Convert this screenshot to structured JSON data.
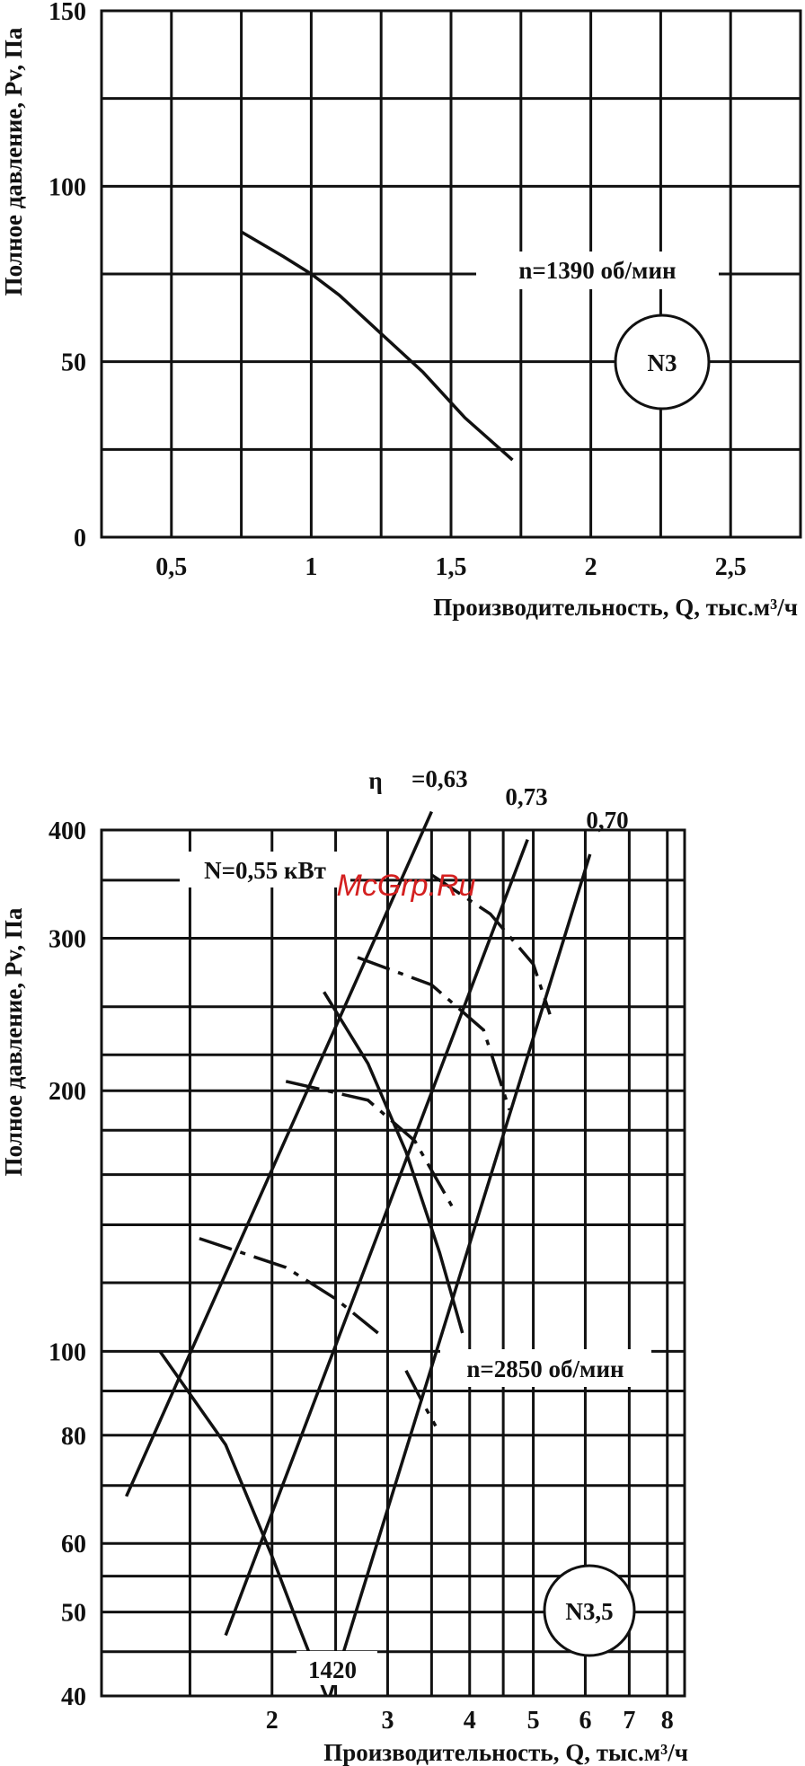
{
  "chart_data": [
    {
      "type": "line",
      "title": "",
      "xlabel": "Производительность, Q, тыс.м³/ч",
      "ylabel": "Полное давление, Pv, Па",
      "xlim": [
        0.25,
        2.75
      ],
      "ylim": [
        0,
        150
      ],
      "x_ticks": [
        0.5,
        1,
        1.5,
        2,
        2.5
      ],
      "x_tick_labels": [
        "0,5",
        "1",
        "1,5",
        "2",
        "2,5"
      ],
      "y_ticks": [
        0,
        50,
        100,
        150
      ],
      "y_tick_labels": [
        "0",
        "50",
        "100",
        "150"
      ],
      "grid": true,
      "annotations": {
        "speed": "n=1390 об/мин",
        "model": "N3"
      },
      "series": [
        {
          "x": [
            0.75,
            0.9,
            1.0,
            1.1,
            1.25,
            1.4,
            1.55,
            1.72
          ],
          "y": [
            87,
            80,
            75,
            69,
            58,
            47,
            34,
            22
          ]
        }
      ]
    },
    {
      "type": "line",
      "title": "",
      "xlabel": "Производительность, Q, тыс.м³/ч",
      "ylabel": "Полное давление, Pv, Па",
      "x_scale": "log",
      "y_scale": "log",
      "xlim": [
        1.1,
        8.5
      ],
      "ylim": [
        40,
        400
      ],
      "x_ticks": [
        2,
        3,
        4,
        5,
        6,
        7,
        8
      ],
      "x_tick_labels": [
        "2",
        "3",
        "4",
        "5",
        "6",
        "7",
        "8"
      ],
      "y_ticks": [
        40,
        50,
        60,
        80,
        100,
        200,
        300,
        400
      ],
      "y_tick_labels": [
        "40",
        "50",
        "60",
        "80",
        "100",
        "200",
        "300",
        "400"
      ],
      "grid": true,
      "annotations": {
        "power": "N=0,55 кВт",
        "speed_high": "n=2850 об/мин",
        "speed_low": "1420",
        "model": "N3,5",
        "eta_symbol": "η",
        "eta_1": "=0,63",
        "eta_2": "0,73",
        "eta_3": "0,70",
        "watermark": "McGrp.Ru"
      },
      "series": [
        {
          "x": [
            2.4,
            2.8,
            3.2,
            3.6,
            3.9
          ],
          "y": [
            260,
            215,
            170,
            130,
            105
          ]
        },
        {
          "x": [
            1.35,
            1.7,
            2.0,
            2.2,
            2.45
          ],
          "y": [
            100,
            78,
            58,
            48,
            39
          ]
        }
      ],
      "dashed_series": [
        {
          "x": [
            1.55,
            2.1,
            2.5,
            2.9
          ],
          "y": [
            135,
            125,
            115,
            105
          ]
        },
        {
          "x": [
            2.1,
            2.8,
            3.3,
            3.8
          ],
          "y": [
            205,
            195,
            175,
            145
          ]
        },
        {
          "x": [
            2.7,
            3.5,
            4.2,
            4.6
          ],
          "y": [
            285,
            265,
            235,
            190
          ]
        },
        {
          "x": [
            3.5,
            4.3,
            5.0,
            5.3
          ],
          "y": [
            355,
            320,
            280,
            245
          ]
        },
        {
          "x": [
            3.2,
            3.4,
            3.55
          ],
          "y": [
            95,
            87,
            82
          ]
        }
      ],
      "efficiency_lines": [
        {
          "label": "=0,63",
          "x": [
            1.2,
            3.5
          ],
          "y": [
            68,
            420
          ]
        },
        {
          "label": "0,73",
          "x": [
            1.7,
            4.9
          ],
          "y": [
            47,
            390
          ]
        },
        {
          "label": "0,70",
          "x": [
            2.4,
            6.1
          ],
          "y": [
            38,
            375
          ]
        }
      ]
    }
  ]
}
